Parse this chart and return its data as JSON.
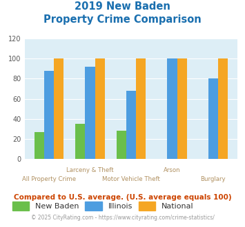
{
  "title_line1": "2019 New Baden",
  "title_line2": "Property Crime Comparison",
  "categories": [
    "All Property Crime",
    "Larceny & Theft",
    "Motor Vehicle Theft",
    "Arson",
    "Burglary"
  ],
  "new_baden": [
    27,
    35,
    28,
    0,
    0
  ],
  "illinois": [
    88,
    92,
    68,
    100,
    80
  ],
  "national": [
    100,
    100,
    100,
    100,
    100
  ],
  "new_baden_color": "#6abf4b",
  "illinois_color": "#4d9de0",
  "national_color": "#f5a623",
  "bg_color": "#ddeef6",
  "title_color": "#1a6faf",
  "xlabel_row1_color": "#b09060",
  "xlabel_row2_color": "#b09060",
  "ylabel_color": "#555555",
  "annotation_color": "#cc4400",
  "footer_color": "#999999",
  "footer_link_color": "#4488cc",
  "ylim": [
    0,
    120
  ],
  "yticks": [
    0,
    20,
    40,
    60,
    80,
    100,
    120
  ],
  "annotation": "Compared to U.S. average. (U.S. average equals 100)",
  "footer_plain": "© 2025 CityRating.com - ",
  "footer_link": "https://www.cityrating.com/crime-statistics/",
  "legend_labels": [
    "New Baden",
    "Illinois",
    "National"
  ],
  "row1_indices": [
    1,
    3
  ],
  "row1_labels": [
    "Larceny & Theft",
    "Arson"
  ],
  "row2_indices": [
    0,
    2,
    4
  ],
  "row2_labels": [
    "All Property Crime",
    "Motor Vehicle Theft",
    "Burglary"
  ]
}
